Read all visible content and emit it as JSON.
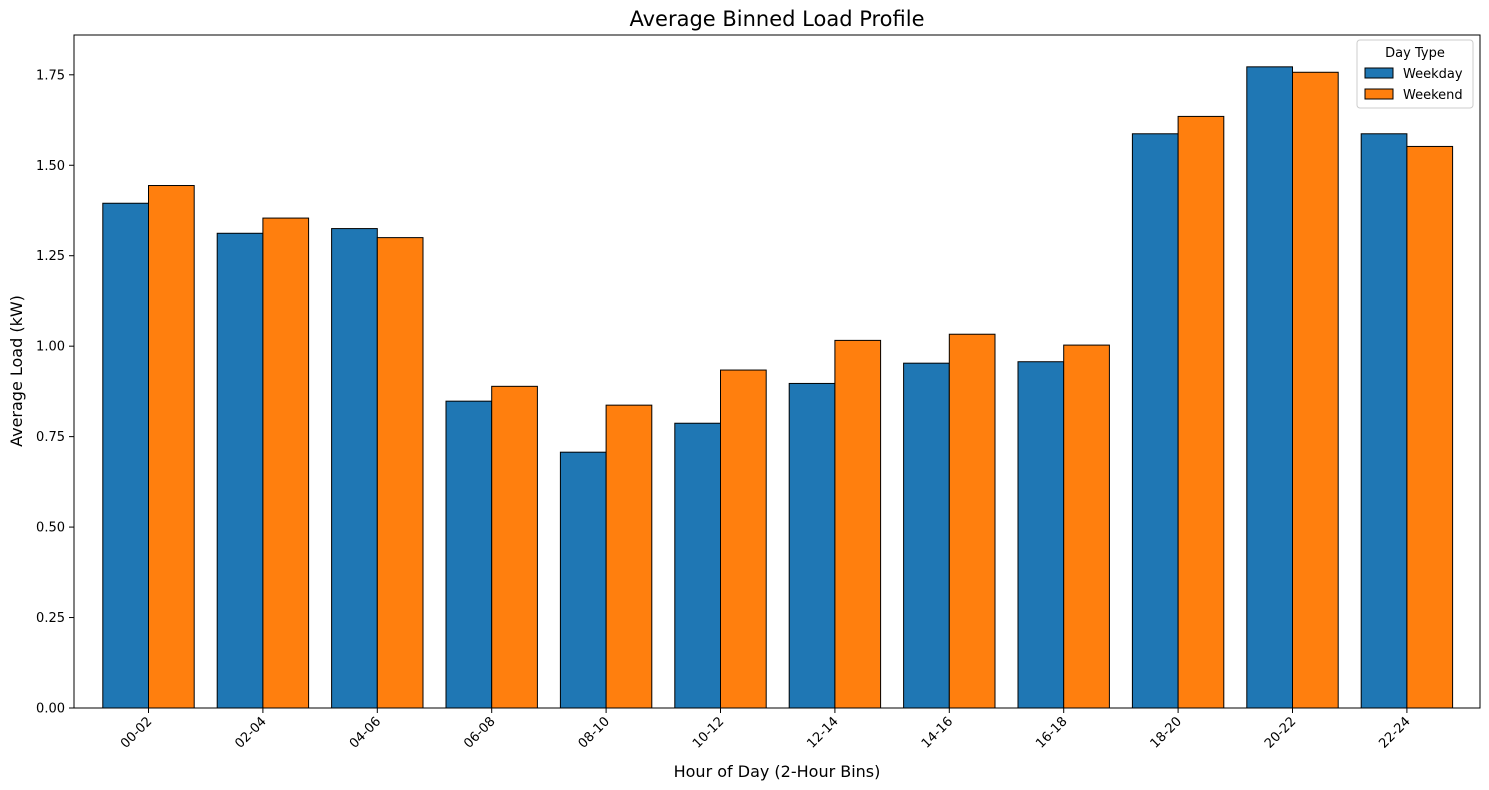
{
  "chart_data": {
    "type": "bar",
    "title": "Average Binned Load Profile",
    "xlabel": "Hour of Day (2-Hour Bins)",
    "ylabel": "Average Load (kW)",
    "categories": [
      "00-02",
      "02-04",
      "04-06",
      "06-08",
      "08-10",
      "10-12",
      "12-14",
      "14-16",
      "16-18",
      "18-20",
      "20-22",
      "22-24"
    ],
    "series": [
      {
        "name": "Weekday",
        "color": "#1f77b4",
        "values": [
          1.395,
          1.312,
          1.325,
          0.848,
          0.707,
          0.787,
          0.897,
          0.953,
          0.957,
          1.587,
          1.772,
          1.587
        ]
      },
      {
        "name": "Weekend",
        "color": "#ff7f0e",
        "values": [
          1.444,
          1.354,
          1.3,
          0.889,
          0.837,
          0.934,
          1.016,
          1.033,
          1.003,
          1.635,
          1.757,
          1.552
        ]
      }
    ],
    "ylim": [
      0,
      1.86
    ],
    "yticks": [
      "0.00",
      "0.25",
      "0.50",
      "0.75",
      "1.00",
      "1.25",
      "1.50",
      "1.75"
    ],
    "legend": {
      "title": "Day Type",
      "placement": "top-right"
    },
    "grid": false
  }
}
